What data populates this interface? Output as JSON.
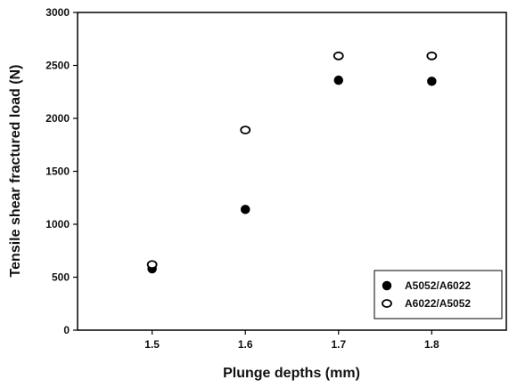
{
  "chart_data": {
    "type": "scatter",
    "title": "",
    "xlabel": "Plunge depths (mm)",
    "ylabel": "Tensile shear fractured load (N)",
    "xlim": [
      1.42,
      1.88
    ],
    "ylim": [
      0,
      3000
    ],
    "xticks": [
      "1.5",
      "1.6",
      "1.7",
      "1.8"
    ],
    "yticks": [
      "0",
      "500",
      "1000",
      "1500",
      "2000",
      "2500",
      "3000"
    ],
    "grid": false,
    "legend_position": "bottom-right",
    "series": [
      {
        "name": "A5052/A6022",
        "marker": "filled-circle",
        "color": "#000000",
        "x": [
          1.5,
          1.6,
          1.7,
          1.8
        ],
        "y": [
          580,
          1140,
          2360,
          2350
        ]
      },
      {
        "name": "A6022/A5052",
        "marker": "open-circle",
        "color": "#000000",
        "x": [
          1.5,
          1.6,
          1.7,
          1.8
        ],
        "y": [
          620,
          1890,
          2590,
          2590
        ]
      }
    ]
  }
}
